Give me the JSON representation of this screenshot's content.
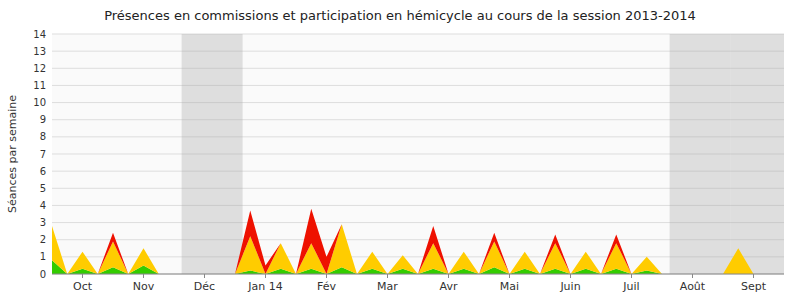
{
  "chart_data": {
    "type": "area",
    "title": "Présences en commissions et participation en hémicycle au cours de la session 2013-2014",
    "ylabel": "Séances par semaine",
    "stacked": true,
    "grid": true,
    "x": [
      0,
      1,
      2,
      3,
      4,
      5,
      6,
      7,
      8,
      9,
      10,
      11,
      12,
      13,
      14,
      15,
      16,
      17,
      18,
      19,
      20,
      21,
      22,
      23,
      24,
      25,
      26,
      27,
      28,
      29,
      30,
      31,
      32,
      33,
      34,
      35,
      36,
      37,
      38,
      39,
      40,
      41,
      42,
      43,
      44,
      45,
      46,
      47
    ],
    "xlim": [
      0,
      48
    ],
    "xticks": [
      {
        "value": 2,
        "label": "Oct"
      },
      {
        "value": 6,
        "label": "Nov"
      },
      {
        "value": 10,
        "label": "Déc"
      },
      {
        "value": 14,
        "label": "Jan 14"
      },
      {
        "value": 18,
        "label": "Fév"
      },
      {
        "value": 22,
        "label": "Mar"
      },
      {
        "value": 26,
        "label": "Avr"
      },
      {
        "value": 30,
        "label": "Mai"
      },
      {
        "value": 34,
        "label": "Juin"
      },
      {
        "value": 38,
        "label": "Juil"
      },
      {
        "value": 42,
        "label": "Août"
      },
      {
        "value": 46,
        "label": "Sept"
      }
    ],
    "ylim": [
      0,
      14
    ],
    "yticks": [
      0,
      1,
      2,
      3,
      4,
      5,
      6,
      7,
      8,
      9,
      10,
      11,
      12,
      13,
      14
    ],
    "shaded_regions": [
      {
        "xmin": 8.5,
        "xmax": 12.5,
        "color": "#aaaaaa"
      },
      {
        "xmin": 40.5,
        "xmax": 44.5,
        "color": "#aaaaaa"
      },
      {
        "xmin": 44.5,
        "xmax": 48,
        "color": "#aaaaaa"
      }
    ],
    "series": [
      {
        "color": "#33cc00",
        "values": [
          0.8,
          0,
          0.3,
          0,
          0.4,
          0,
          0.5,
          0,
          0,
          0,
          0,
          0,
          0,
          0.2,
          0,
          0.3,
          0,
          0.3,
          0,
          0.4,
          0,
          0.3,
          0,
          0.3,
          0,
          0.3,
          0,
          0.3,
          0,
          0.4,
          0,
          0.3,
          0,
          0.3,
          0,
          0.3,
          0,
          0.3,
          0,
          0.2,
          0,
          0,
          0,
          0,
          0,
          0,
          0,
          0
        ]
      },
      {
        "color": "#ffcc00",
        "values": [
          2.0,
          0,
          1.0,
          0,
          1.5,
          0,
          1.0,
          0,
          0,
          0,
          0,
          0,
          0,
          2.0,
          0,
          1.5,
          0,
          1.5,
          0,
          2.5,
          0,
          1.0,
          0,
          0.8,
          0,
          1.5,
          0,
          1.0,
          0,
          1.5,
          0,
          1.0,
          0,
          1.5,
          0,
          1.0,
          0,
          1.5,
          0,
          0.8,
          0,
          0,
          0,
          0,
          0,
          1.5,
          0,
          0
        ]
      },
      {
        "color": "#ee1100",
        "values": [
          0,
          0,
          0,
          0,
          0.5,
          0,
          0,
          0,
          0,
          0,
          0,
          0,
          0,
          1.5,
          0.5,
          0,
          0,
          2.0,
          1.0,
          0,
          0,
          0,
          0,
          0,
          0,
          1.0,
          0,
          0,
          0,
          0.5,
          0,
          0,
          0,
          0.5,
          0,
          0,
          0,
          0.5,
          0,
          0,
          0,
          0,
          0,
          0,
          0,
          0,
          0,
          0
        ]
      }
    ]
  }
}
